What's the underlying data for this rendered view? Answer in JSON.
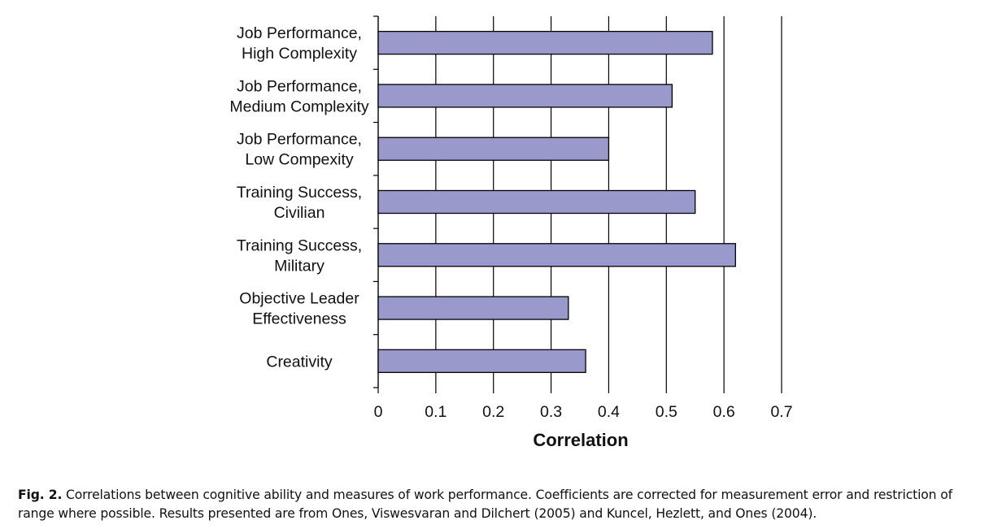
{
  "chart_data": {
    "type": "bar",
    "orientation": "horizontal",
    "categories": [
      [
        "Job Performance,",
        "High Complexity"
      ],
      [
        "Job Performance,",
        "Medium Complexity"
      ],
      [
        "Job Performance,",
        "Low Compexity"
      ],
      [
        "Training Success,",
        "Civilian"
      ],
      [
        "Training Success,",
        "Military"
      ],
      [
        "Objective Leader",
        "Effectiveness"
      ],
      [
        "Creativity"
      ]
    ],
    "values": [
      0.58,
      0.51,
      0.4,
      0.55,
      0.62,
      0.33,
      0.36
    ],
    "xlabel": "Correlation",
    "ylabel": "",
    "xlim": [
      0,
      0.7
    ],
    "xticks": [
      0,
      0.1,
      0.2,
      0.3,
      0.4,
      0.5,
      0.6,
      0.7
    ],
    "xtick_labels": [
      "0",
      "0.1",
      "0.2",
      "0.3",
      "0.4",
      "0.5",
      "0.6",
      "0.7"
    ],
    "grid": "vertical",
    "legend": "none",
    "bar_color": "#9999cc",
    "bar_edge_color": "#000000"
  },
  "caption": {
    "label": "Fig. 2.",
    "text": " Correlations between cognitive ability and measures of work performance. Coefficients are corrected for measurement error and restriction of range where possible. Results presented are from Ones, Viswesvaran and Dilchert (2005) and Kuncel, Hezlett, and Ones (2004)."
  }
}
